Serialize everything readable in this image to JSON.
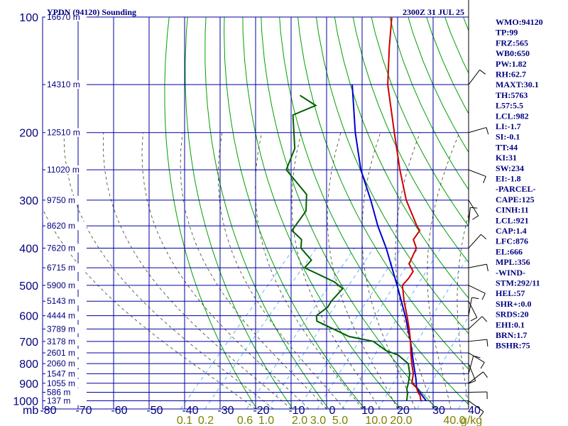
{
  "chart_data": {
    "type": "skew-t",
    "title": "YPDN (94120) Sounding",
    "datetime": "2300Z 31 JUL 25",
    "pressure_axis_label": "mb",
    "pressure_ticks": [
      100,
      200,
      300,
      400,
      500,
      600,
      700,
      800,
      900,
      1000
    ],
    "temperature_ticks": [
      "-80",
      "-70",
      "-60",
      "-50",
      "-40",
      "-30",
      "-20",
      "-10",
      "0",
      "10",
      "20",
      "30",
      "40"
    ],
    "height_labels": [
      {
        "p": 100,
        "text": "16670 m"
      },
      {
        "p": 150,
        "text": "14310 m"
      },
      {
        "p": 200,
        "text": "12510 m"
      },
      {
        "p": 250,
        "text": "11020 m"
      },
      {
        "p": 300,
        "text": "9750 m"
      },
      {
        "p": 350,
        "text": "8620 m"
      },
      {
        "p": 400,
        "text": "7620 m"
      },
      {
        "p": 450,
        "text": "6715 m"
      },
      {
        "p": 500,
        "text": "5900 m"
      },
      {
        "p": 550,
        "text": "5143 m"
      },
      {
        "p": 600,
        "text": "4444 m"
      },
      {
        "p": 650,
        "text": "3789 m"
      },
      {
        "p": 700,
        "text": "3178 m"
      },
      {
        "p": 750,
        "text": "2601 m"
      },
      {
        "p": 800,
        "text": "2060 m"
      },
      {
        "p": 850,
        "text": "1547 m"
      },
      {
        "p": 900,
        "text": "1055 m"
      },
      {
        "p": 950,
        "text": "586 m"
      },
      {
        "p": 1000,
        "text": "137 m"
      }
    ],
    "mixing_ratio_labels": [
      "0.1",
      "0.2",
      "0.6",
      "1.0",
      "2.0",
      "3.0",
      "5.0",
      "10.0",
      "20.0",
      "40.0",
      "g/kg"
    ],
    "temperature_profile": {
      "name": "Temperature",
      "color": "#cc0000",
      "points": [
        [
          1000,
          24.5
        ],
        [
          970,
          23
        ],
        [
          950,
          21.5
        ],
        [
          925,
          20
        ],
        [
          900,
          17.5
        ],
        [
          850,
          15.5
        ],
        [
          800,
          12.5
        ],
        [
          750,
          9.5
        ],
        [
          700,
          6.5
        ],
        [
          650,
          3
        ],
        [
          600,
          -1
        ],
        [
          550,
          -5.5
        ],
        [
          500,
          -10
        ],
        [
          480,
          -10
        ],
        [
          460,
          -10.5
        ],
        [
          440,
          -13.5
        ],
        [
          420,
          -14.5
        ],
        [
          400,
          -15.5
        ],
        [
          380,
          -18.5
        ],
        [
          360,
          -19
        ],
        [
          350,
          -21
        ],
        [
          300,
          -30.5
        ],
        [
          250,
          -40
        ],
        [
          200,
          -51
        ],
        [
          150,
          -65
        ],
        [
          120,
          -74
        ],
        [
          100,
          -81
        ]
      ]
    },
    "dewpoint_profile": {
      "name": "Dewpoint",
      "color": "#006000",
      "points": [
        [
          1000,
          20.5
        ],
        [
          960,
          19
        ],
        [
          930,
          17.5
        ],
        [
          900,
          16.5
        ],
        [
          850,
          14.5
        ],
        [
          800,
          11.5
        ],
        [
          760,
          6.5
        ],
        [
          740,
          2
        ],
        [
          700,
          -4
        ],
        [
          680,
          -12
        ],
        [
          620,
          -25
        ],
        [
          600,
          -26.5
        ],
        [
          570,
          -25.5
        ],
        [
          550,
          -26
        ],
        [
          510,
          -26
        ],
        [
          490,
          -30
        ],
        [
          450,
          -42
        ],
        [
          430,
          -42
        ],
        [
          400,
          -48
        ],
        [
          380,
          -50
        ],
        [
          360,
          -55
        ],
        [
          320,
          -56
        ],
        [
          290,
          -60
        ],
        [
          250,
          -72
        ],
        [
          220,
          -75
        ],
        [
          180,
          -84
        ],
        [
          170,
          -80
        ],
        [
          160,
          -87
        ]
      ]
    },
    "parcel_profile": {
      "name": "Parcel",
      "color": "#0000cc",
      "points": [
        [
          1000,
          26
        ],
        [
          950,
          22
        ],
        [
          921,
          19.8
        ],
        [
          876,
          17.5
        ],
        [
          800,
          13
        ],
        [
          700,
          6.5
        ],
        [
          600,
          -1.5
        ],
        [
          500,
          -11.5
        ],
        [
          400,
          -24
        ],
        [
          350,
          -32
        ],
        [
          300,
          -40.5
        ],
        [
          250,
          -51
        ],
        [
          200,
          -62
        ],
        [
          150,
          -75
        ]
      ]
    },
    "indices": [
      "WMO:94120",
      "TP:99",
      "FRZ:565",
      "WB0:650",
      "PW:1.82",
      "RH:62.7",
      "MAXT:30.1",
      "TH:5763",
      "L57:5.5",
      "LCL:982",
      "LI:-1.7",
      "SI:-0.1",
      "TT:44",
      "KI:31",
      "SW:234",
      "EI:-1.8",
      "-PARCEL-",
      "CAPE:125",
      "CINH:11",
      "LCL:921",
      "CAP:1.4",
      "LFC:876",
      "EL:666",
      "MPL:356",
      "-WIND-",
      "STM:292/11",
      "HEL:57",
      "SHR+:0.0",
      "SRDS:20",
      "EHI:0.1",
      "BRN:1.7",
      "BSHR:75"
    ],
    "grid": true,
    "colors": {
      "grid": "#0000a0",
      "dry_adiabat": "#00a000",
      "moist_adiabat": "#404020",
      "mixing_ratio": "#40a0ff",
      "text": "#000080"
    }
  }
}
